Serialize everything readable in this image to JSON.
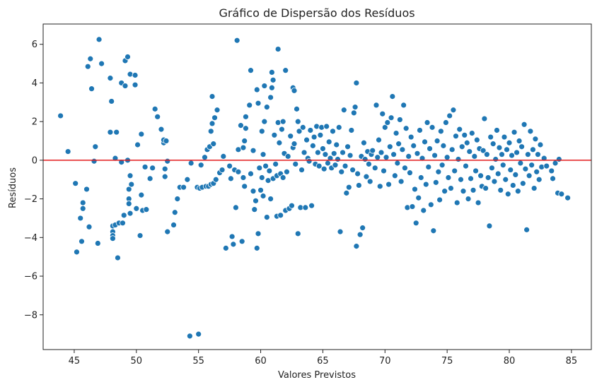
{
  "chart_data": {
    "type": "scatter",
    "title": "Gráfico de Dispersão dos Resíduos",
    "xlabel": "Valores Previstos",
    "ylabel": "Resíduos",
    "xlim": [
      42.5,
      86.6
    ],
    "ylim": [
      -9.8,
      7.05
    ],
    "xticks": [
      45,
      50,
      55,
      60,
      65,
      70,
      75,
      80,
      85
    ],
    "yticks": [
      -8,
      -6,
      -4,
      -2,
      0,
      2,
      4,
      6
    ],
    "reference_line": {
      "y": 0,
      "color": "#e31a1c"
    },
    "point_color": "#1f77b4",
    "grid": false,
    "legend": "none",
    "points": [
      [
        43.9,
        2.3
      ],
      [
        44.5,
        0.45
      ],
      [
        45.1,
        -1.2
      ],
      [
        45.2,
        -4.75
      ],
      [
        45.5,
        -3.0
      ],
      [
        45.6,
        -4.2
      ],
      [
        45.7,
        -2.5
      ],
      [
        45.7,
        -2.2
      ],
      [
        46.0,
        -1.5
      ],
      [
        46.1,
        4.85
      ],
      [
        46.2,
        -3.45
      ],
      [
        46.3,
        5.25
      ],
      [
        46.4,
        3.7
      ],
      [
        46.6,
        -0.05
      ],
      [
        46.7,
        0.7
      ],
      [
        46.9,
        -4.3
      ],
      [
        47.0,
        6.25
      ],
      [
        47.2,
        5.0
      ],
      [
        47.9,
        4.25
      ],
      [
        47.9,
        1.45
      ],
      [
        48.0,
        3.05
      ],
      [
        48.1,
        -3.4
      ],
      [
        48.1,
        -3.7
      ],
      [
        48.1,
        -3.9
      ],
      [
        48.1,
        -4.05
      ],
      [
        48.3,
        -3.35
      ],
      [
        48.3,
        0.1
      ],
      [
        48.4,
        1.45
      ],
      [
        48.5,
        -5.05
      ],
      [
        48.6,
        -3.25
      ],
      [
        48.8,
        -0.1
      ],
      [
        48.8,
        4.0
      ],
      [
        48.9,
        -3.25
      ],
      [
        49.0,
        -2.85
      ],
      [
        49.1,
        3.85
      ],
      [
        49.1,
        5.15
      ],
      [
        49.3,
        5.35
      ],
      [
        49.3,
        0.0
      ],
      [
        49.4,
        -1.5
      ],
      [
        49.4,
        -2.0
      ],
      [
        49.4,
        -2.25
      ],
      [
        49.5,
        4.45
      ],
      [
        49.5,
        -0.8
      ],
      [
        49.5,
        -2.75
      ],
      [
        49.6,
        -1.25
      ],
      [
        49.9,
        3.9
      ],
      [
        49.9,
        4.4
      ],
      [
        50.0,
        -2.5
      ],
      [
        50.1,
        0.8
      ],
      [
        50.3,
        -3.9
      ],
      [
        50.4,
        1.35
      ],
      [
        50.4,
        -1.8
      ],
      [
        50.5,
        -2.6
      ],
      [
        50.7,
        -0.35
      ],
      [
        50.8,
        -2.55
      ],
      [
        51.1,
        -0.95
      ],
      [
        51.3,
        -0.4
      ],
      [
        51.5,
        2.65
      ],
      [
        51.7,
        2.25
      ],
      [
        52.0,
        1.6
      ],
      [
        52.2,
        0.9
      ],
      [
        52.2,
        1.05
      ],
      [
        52.3,
        -0.45
      ],
      [
        52.3,
        -0.85
      ],
      [
        52.4,
        1.0
      ],
      [
        52.5,
        -3.7
      ],
      [
        52.5,
        -0.05
      ],
      [
        53.0,
        -3.35
      ],
      [
        53.1,
        -2.7
      ],
      [
        53.3,
        -2.0
      ],
      [
        53.5,
        -1.4
      ],
      [
        53.8,
        -1.4
      ],
      [
        54.1,
        -1.0
      ],
      [
        54.3,
        -9.1
      ],
      [
        54.4,
        -0.15
      ],
      [
        54.9,
        -1.4
      ],
      [
        55.0,
        -9.0
      ],
      [
        55.1,
        -1.45
      ],
      [
        55.2,
        -0.25
      ],
      [
        55.3,
        -1.4
      ],
      [
        55.5,
        0.15
      ],
      [
        55.6,
        -1.35
      ],
      [
        55.7,
        0.55
      ],
      [
        55.8,
        -1.35
      ],
      [
        55.9,
        0.7
      ],
      [
        56.0,
        1.5
      ],
      [
        56.0,
        -1.25
      ],
      [
        56.1,
        3.3
      ],
      [
        56.1,
        1.9
      ],
      [
        56.2,
        0.85
      ],
      [
        56.2,
        -1.2
      ],
      [
        56.3,
        2.2
      ],
      [
        56.4,
        -1.0
      ],
      [
        56.5,
        2.6
      ],
      [
        56.7,
        -0.65
      ],
      [
        56.9,
        -0.5
      ],
      [
        57.0,
        0.2
      ],
      [
        57.2,
        -4.55
      ],
      [
        57.5,
        -0.3
      ],
      [
        57.6,
        -0.95
      ],
      [
        57.7,
        -3.95
      ],
      [
        57.8,
        -4.35
      ],
      [
        57.9,
        -0.5
      ],
      [
        58.0,
        -2.45
      ],
      [
        58.1,
        6.2
      ],
      [
        58.2,
        0.55
      ],
      [
        58.2,
        -0.6
      ],
      [
        58.4,
        1.8
      ],
      [
        58.5,
        -4.2
      ],
      [
        58.6,
        0.65
      ],
      [
        58.6,
        -0.9
      ],
      [
        58.7,
        1.0
      ],
      [
        58.7,
        -1.35
      ],
      [
        58.8,
        2.25
      ],
      [
        58.8,
        1.65
      ],
      [
        59.1,
        2.85
      ],
      [
        59.2,
        -0.7
      ],
      [
        59.2,
        4.65
      ],
      [
        59.4,
        0.5
      ],
      [
        59.4,
        -1.6
      ],
      [
        59.5,
        -2.55
      ],
      [
        59.6,
        -2.1
      ],
      [
        59.7,
        3.65
      ],
      [
        59.7,
        -4.55
      ],
      [
        59.8,
        -3.8
      ],
      [
        59.8,
        2.95
      ],
      [
        59.9,
        -0.4
      ],
      [
        60.0,
        -1.55
      ],
      [
        60.1,
        1.5
      ],
      [
        60.1,
        -0.9
      ],
      [
        60.2,
        0.3
      ],
      [
        60.2,
        -1.85
      ],
      [
        60.3,
        2.0
      ],
      [
        60.3,
        3.85
      ],
      [
        60.4,
        -0.3
      ],
      [
        60.5,
        -2.95
      ],
      [
        60.5,
        2.75
      ],
      [
        60.6,
        -1.05
      ],
      [
        60.7,
        -0.55
      ],
      [
        60.8,
        3.25
      ],
      [
        60.8,
        -2.0
      ],
      [
        60.9,
        4.55
      ],
      [
        60.9,
        3.75
      ],
      [
        61.0,
        -0.95
      ],
      [
        61.0,
        4.15
      ],
      [
        61.1,
        1.3
      ],
      [
        61.2,
        -0.2
      ],
      [
        61.3,
        -2.9
      ],
      [
        61.3,
        -0.8
      ],
      [
        61.4,
        5.75
      ],
      [
        61.4,
        1.95
      ],
      [
        61.5,
        0.9
      ],
      [
        61.6,
        -0.7
      ],
      [
        61.6,
        -2.85
      ],
      [
        61.7,
        1.6
      ],
      [
        61.8,
        2.0
      ],
      [
        61.8,
        -0.9
      ],
      [
        61.9,
        0.35
      ],
      [
        62.0,
        4.65
      ],
      [
        62.0,
        -2.6
      ],
      [
        62.1,
        -0.6
      ],
      [
        62.2,
        0.2
      ],
      [
        62.3,
        -2.5
      ],
      [
        62.4,
        1.25
      ],
      [
        62.5,
        -2.35
      ],
      [
        62.6,
        3.75
      ],
      [
        62.6,
        0.65
      ],
      [
        62.7,
        3.6
      ],
      [
        62.7,
        0.85
      ],
      [
        62.8,
        -0.2
      ],
      [
        62.9,
        2.65
      ],
      [
        63.0,
        -3.8
      ],
      [
        63.0,
        2.0
      ],
      [
        63.1,
        1.5
      ],
      [
        63.2,
        -2.45
      ],
      [
        63.3,
        -0.5
      ],
      [
        63.4,
        1.7
      ],
      [
        63.5,
        0.4
      ],
      [
        63.6,
        -2.45
      ],
      [
        63.7,
        1.05
      ],
      [
        63.8,
        0.1
      ],
      [
        63.9,
        -0.05
      ],
      [
        64.0,
        1.55
      ],
      [
        64.1,
        -2.35
      ],
      [
        64.2,
        0.75
      ],
      [
        64.3,
        1.2
      ],
      [
        64.4,
        -0.2
      ],
      [
        64.5,
        1.75
      ],
      [
        64.6,
        0.4
      ],
      [
        64.7,
        -0.3
      ],
      [
        64.8,
        1.3
      ],
      [
        64.9,
        1.7
      ],
      [
        65.0,
        0.6
      ],
      [
        65.1,
        -0.45
      ],
      [
        65.2,
        0.3
      ],
      [
        65.3,
        1.75
      ],
      [
        65.4,
        -0.15
      ],
      [
        65.5,
        0.95
      ],
      [
        65.6,
        0.1
      ],
      [
        65.7,
        -0.4
      ],
      [
        65.8,
        1.5
      ],
      [
        65.9,
        0.35
      ],
      [
        66.0,
        -0.25
      ],
      [
        66.1,
        0.8
      ],
      [
        66.2,
        0.05
      ],
      [
        66.3,
        1.7
      ],
      [
        66.4,
        -3.7
      ],
      [
        66.5,
        -0.6
      ],
      [
        66.6,
        0.4
      ],
      [
        66.7,
        2.6
      ],
      [
        66.8,
        -0.3
      ],
      [
        66.9,
        -1.7
      ],
      [
        67.0,
        0.7
      ],
      [
        67.1,
        -1.4
      ],
      [
        67.2,
        0.25
      ],
      [
        67.3,
        1.55
      ],
      [
        67.4,
        -0.5
      ],
      [
        67.5,
        2.45
      ],
      [
        67.6,
        2.75
      ],
      [
        67.7,
        -4.45
      ],
      [
        67.7,
        4.0
      ],
      [
        67.8,
        -0.7
      ],
      [
        67.9,
        -1.3
      ],
      [
        68.0,
        -3.85
      ],
      [
        68.1,
        0.2
      ],
      [
        68.2,
        -3.5
      ],
      [
        68.3,
        0.9
      ],
      [
        68.4,
        0.05
      ],
      [
        68.5,
        -0.85
      ],
      [
        68.6,
        0.45
      ],
      [
        68.7,
        -0.2
      ],
      [
        68.8,
        -1.1
      ],
      [
        68.9,
        0.3
      ],
      [
        69.0,
        0.5
      ],
      [
        69.2,
        -0.4
      ],
      [
        69.3,
        2.85
      ],
      [
        69.4,
        0.15
      ],
      [
        69.5,
        1.05
      ],
      [
        69.6,
        -1.35
      ],
      [
        69.7,
        0.4
      ],
      [
        69.8,
        2.4
      ],
      [
        69.9,
        -0.55
      ],
      [
        70.0,
        1.7
      ],
      [
        70.1,
        0.15
      ],
      [
        70.2,
        1.95
      ],
      [
        70.3,
        -1.25
      ],
      [
        70.4,
        0.7
      ],
      [
        70.5,
        2.2
      ],
      [
        70.6,
        3.3
      ],
      [
        70.7,
        0.3
      ],
      [
        70.8,
        -0.8
      ],
      [
        70.9,
        1.4
      ],
      [
        71.0,
        -0.15
      ],
      [
        71.1,
        0.85
      ],
      [
        71.2,
        2.1
      ],
      [
        71.3,
        -1.1
      ],
      [
        71.4,
        0.55
      ],
      [
        71.5,
        2.85
      ],
      [
        71.6,
        -0.4
      ],
      [
        71.7,
        1.65
      ],
      [
        71.8,
        -2.45
      ],
      [
        71.9,
        0.2
      ],
      [
        72.0,
        -0.65
      ],
      [
        72.1,
        1.2
      ],
      [
        72.2,
        -2.4
      ],
      [
        72.3,
        0.75
      ],
      [
        72.4,
        -1.5
      ],
      [
        72.5,
        -3.25
      ],
      [
        72.6,
        0.35
      ],
      [
        72.7,
        -1.95
      ],
      [
        72.8,
        1.55
      ],
      [
        72.9,
        -0.9
      ],
      [
        73.0,
        0.1
      ],
      [
        73.1,
        -2.6
      ],
      [
        73.2,
        0.95
      ],
      [
        73.3,
        -1.25
      ],
      [
        73.4,
        1.95
      ],
      [
        73.5,
        -0.35
      ],
      [
        73.6,
        0.6
      ],
      [
        73.7,
        -2.3
      ],
      [
        73.8,
        1.7
      ],
      [
        73.9,
        -3.65
      ],
      [
        74.0,
        0.25
      ],
      [
        74.1,
        -1.15
      ],
      [
        74.2,
        1.0
      ],
      [
        74.3,
        -0.6
      ],
      [
        74.4,
        -2.05
      ],
      [
        74.5,
        1.5
      ],
      [
        74.6,
        -0.25
      ],
      [
        74.7,
        0.75
      ],
      [
        74.8,
        -1.6
      ],
      [
        74.9,
        1.95
      ],
      [
        75.0,
        0.15
      ],
      [
        75.1,
        -0.9
      ],
      [
        75.2,
        2.3
      ],
      [
        75.3,
        -1.45
      ],
      [
        75.4,
        0.55
      ],
      [
        75.5,
        2.6
      ],
      [
        75.6,
        -0.55
      ],
      [
        75.7,
        1.25
      ],
      [
        75.8,
        -2.2
      ],
      [
        75.9,
        0.05
      ],
      [
        76.0,
        1.6
      ],
      [
        76.1,
        -1.0
      ],
      [
        76.2,
        0.7
      ],
      [
        76.3,
        -1.6
      ],
      [
        76.4,
        1.3
      ],
      [
        76.5,
        -0.3
      ],
      [
        76.6,
        0.9
      ],
      [
        76.7,
        -2.0
      ],
      [
        76.8,
        0.45
      ],
      [
        76.9,
        -0.95
      ],
      [
        77.0,
        1.4
      ],
      [
        77.1,
        -1.55
      ],
      [
        77.2,
        0.2
      ],
      [
        77.3,
        -0.55
      ],
      [
        77.4,
        1.05
      ],
      [
        77.5,
        -2.2
      ],
      [
        77.6,
        0.6
      ],
      [
        77.7,
        -0.8
      ],
      [
        77.8,
        -1.35
      ],
      [
        77.9,
        0.5
      ],
      [
        78.0,
        2.15
      ],
      [
        78.1,
        -1.45
      ],
      [
        78.2,
        0.3
      ],
      [
        78.3,
        -0.9
      ],
      [
        78.4,
        -3.4
      ],
      [
        78.5,
        1.2
      ],
      [
        78.6,
        -0.4
      ],
      [
        78.7,
        0.85
      ],
      [
        78.8,
        -1.1
      ],
      [
        78.9,
        0.05
      ],
      [
        79.0,
        1.55
      ],
      [
        79.1,
        -0.7
      ],
      [
        79.2,
        0.65
      ],
      [
        79.3,
        -1.55
      ],
      [
        79.4,
        0.3
      ],
      [
        79.5,
        -0.25
      ],
      [
        79.6,
        1.2
      ],
      [
        79.7,
        -1.0
      ],
      [
        79.8,
        0.55
      ],
      [
        79.9,
        -1.75
      ],
      [
        80.0,
        0.9
      ],
      [
        80.1,
        -0.5
      ],
      [
        80.2,
        0.25
      ],
      [
        80.3,
        -1.3
      ],
      [
        80.4,
        1.45
      ],
      [
        80.5,
        -0.75
      ],
      [
        80.6,
        0.4
      ],
      [
        80.7,
        -1.6
      ],
      [
        80.8,
        1.0
      ],
      [
        80.9,
        -0.15
      ],
      [
        81.0,
        0.7
      ],
      [
        81.1,
        -1.2
      ],
      [
        81.2,
        1.85
      ],
      [
        81.3,
        -0.45
      ],
      [
        81.4,
        -3.6
      ],
      [
        81.5,
        0.3
      ],
      [
        81.6,
        -0.8
      ],
      [
        81.7,
        1.5
      ],
      [
        81.8,
        -0.25
      ],
      [
        81.9,
        0.55
      ],
      [
        82.0,
        -1.45
      ],
      [
        82.1,
        1.1
      ],
      [
        82.2,
        -0.6
      ],
      [
        82.3,
        0.3
      ],
      [
        82.4,
        -1.0
      ],
      [
        82.5,
        0.8
      ],
      [
        82.6,
        -0.35
      ],
      [
        82.8,
        0.1
      ],
      [
        83.0,
        -0.3
      ],
      [
        83.4,
        -0.55
      ],
      [
        83.5,
        -0.95
      ],
      [
        83.7,
        -0.15
      ],
      [
        83.9,
        -1.7
      ],
      [
        84.0,
        0.05
      ],
      [
        84.2,
        -1.75
      ],
      [
        84.7,
        -1.95
      ]
    ]
  }
}
